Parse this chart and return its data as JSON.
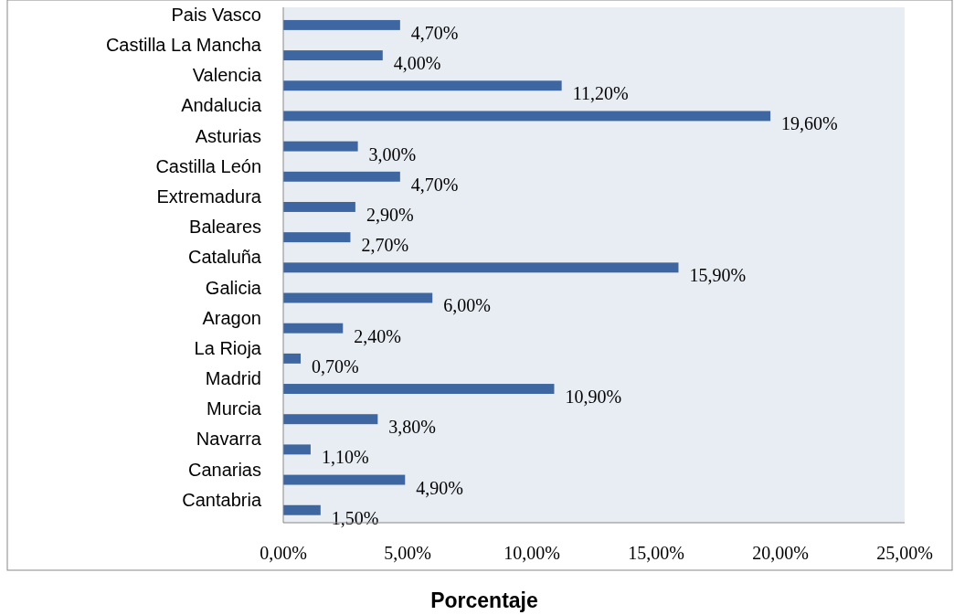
{
  "chart_data": {
    "type": "bar",
    "orientation": "horizontal",
    "xlabel": "Porcentaje",
    "categories": [
      "Pais Vasco",
      "Castilla La Mancha",
      "Valencia",
      "Andalucia",
      "Asturias",
      "Castilla León",
      "Extremadura",
      "Baleares",
      "Cataluña",
      "Galicia",
      "Aragon",
      "La Rioja",
      "Madrid",
      "Murcia",
      "Navarra",
      "Canarias",
      "Cantabria"
    ],
    "values": [
      4.7,
      4.0,
      11.2,
      19.6,
      3.0,
      4.7,
      2.9,
      2.7,
      15.9,
      6.0,
      2.4,
      0.7,
      10.9,
      3.8,
      1.1,
      4.9,
      1.5
    ],
    "value_labels": [
      "4,70%",
      "4,00%",
      "11,20%",
      "19,60%",
      "3,00%",
      "4,70%",
      "2,90%",
      "2,70%",
      "15,90%",
      "6,00%",
      "2,40%",
      "0,70%",
      "10,90%",
      "3,80%",
      "1,10%",
      "4,90%",
      "1,50%"
    ],
    "color": "#3e66a0",
    "xlim": [
      0,
      25
    ],
    "xticks": [
      {
        "value": 0,
        "label": "0,00%"
      },
      {
        "value": 5,
        "label": "5,00%"
      },
      {
        "value": 10,
        "label": "10,00%"
      },
      {
        "value": 15,
        "label": "15,00%"
      },
      {
        "value": 20,
        "label": "20,00%"
      },
      {
        "value": 25,
        "label": "25,00%"
      }
    ],
    "grid": false
  }
}
